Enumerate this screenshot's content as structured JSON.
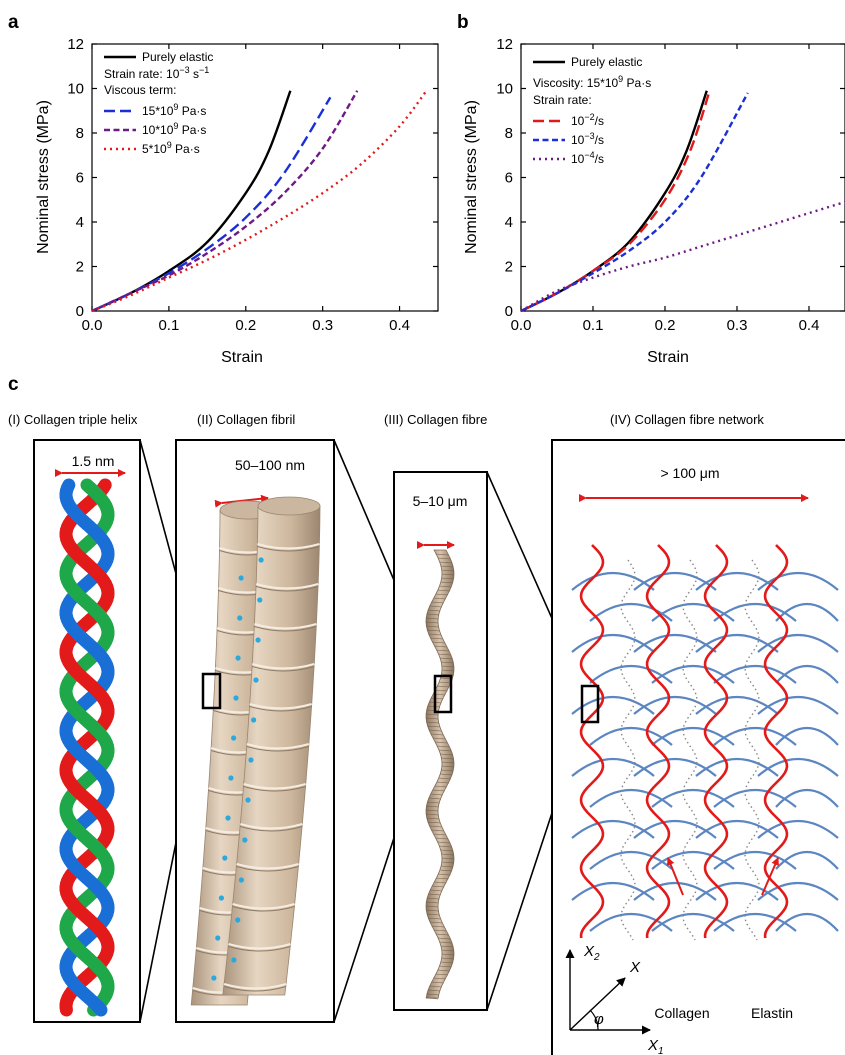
{
  "panel_labels": [
    "a",
    "b",
    "c"
  ],
  "chart_data": [
    {
      "type": "line",
      "panel": "a",
      "xlabel": "Strain",
      "ylabel": "Nominal stress (MPa)",
      "xlim": [
        0,
        0.45
      ],
      "ylim": [
        0,
        12
      ],
      "xticks": [
        "0.0",
        "0.1",
        "0.2",
        "0.3",
        "0.4"
      ],
      "yticks": [
        "0",
        "2",
        "4",
        "6",
        "8",
        "10",
        "12"
      ],
      "legend_position": "top-left",
      "legend_text": {
        "strain_rate": "Strain rate: 10",
        "strain_rate_exp": "−3",
        "strain_rate_unit": " s",
        "strain_rate_unit_exp": "−1",
        "heading": "Viscous term:"
      },
      "series": [
        {
          "name": "Purely elastic",
          "label_base": "Purely elastic",
          "label_exp": "",
          "label_unit": "",
          "color": "#000000",
          "dash": "solid",
          "x": [
            0,
            0.05,
            0.1,
            0.15,
            0.2,
            0.23,
            0.258
          ],
          "y": [
            0,
            0.8,
            1.8,
            3.1,
            5.3,
            7.2,
            9.9
          ]
        },
        {
          "name": "15*10^9 Pa·s",
          "label_base": "15*10",
          "label_exp": "9",
          "label_unit": " Pa·s",
          "color": "#1a2fd6",
          "dash": "long",
          "x": [
            0,
            0.05,
            0.1,
            0.15,
            0.2,
            0.25,
            0.31
          ],
          "y": [
            0,
            0.8,
            1.7,
            2.8,
            4.2,
            6.2,
            9.6
          ]
        },
        {
          "name": "10*10^9 Pa·s",
          "label_base": "10*10",
          "label_exp": "9",
          "label_unit": " Pa·s",
          "color": "#6e1a86",
          "dash": "medium",
          "x": [
            0,
            0.05,
            0.1,
            0.15,
            0.2,
            0.25,
            0.3,
            0.345
          ],
          "y": [
            0,
            0.8,
            1.6,
            2.6,
            3.8,
            5.3,
            7.3,
            9.9
          ]
        },
        {
          "name": "5*10^9 Pa·s",
          "label_base": "5*10",
          "label_exp": "9",
          "label_unit": " Pa·s",
          "color": "#e01a1a",
          "dash": "dot",
          "x": [
            0,
            0.05,
            0.1,
            0.15,
            0.2,
            0.25,
            0.3,
            0.35,
            0.4,
            0.435
          ],
          "y": [
            0,
            0.7,
            1.5,
            2.3,
            3.2,
            4.2,
            5.3,
            6.6,
            8.3,
            9.9
          ]
        }
      ]
    },
    {
      "type": "line",
      "panel": "b",
      "xlabel": "Strain",
      "ylabel": "Nominal stress (MPa)",
      "xlim": [
        0,
        0.45
      ],
      "ylim": [
        0,
        12
      ],
      "xticks": [
        "0.0",
        "0.1",
        "0.2",
        "0.3",
        "0.4"
      ],
      "yticks": [
        "0",
        "2",
        "4",
        "6",
        "8",
        "10",
        "12"
      ],
      "legend_position": "top-left",
      "legend_text": {
        "viscosity": "Viscosity: 15*10",
        "viscosity_exp": "9",
        "viscosity_unit": " Pa·s",
        "heading": "Strain rate:"
      },
      "series": [
        {
          "name": "Purely elastic",
          "label_base": "Purely elastic",
          "label_exp": "",
          "label_unit": "",
          "color": "#000000",
          "dash": "solid",
          "x": [
            0,
            0.05,
            0.1,
            0.15,
            0.2,
            0.23,
            0.258
          ],
          "y": [
            0,
            0.8,
            1.8,
            3.1,
            5.3,
            7.2,
            9.9
          ]
        },
        {
          "name": "10^-2/s",
          "label_base": "10",
          "label_exp": "−2",
          "label_unit": "/s",
          "color": "#e01a1a",
          "dash": "long",
          "x": [
            0,
            0.05,
            0.1,
            0.15,
            0.2,
            0.235,
            0.262
          ],
          "y": [
            0,
            0.8,
            1.8,
            3.0,
            5.0,
            7.2,
            9.9
          ]
        },
        {
          "name": "10^-3/s",
          "label_base": "10",
          "label_exp": "−3",
          "label_unit": "/s",
          "color": "#1a2fd6",
          "dash": "medium",
          "x": [
            0,
            0.05,
            0.1,
            0.15,
            0.2,
            0.25,
            0.315
          ],
          "y": [
            0,
            0.8,
            1.7,
            2.7,
            4.0,
            6.0,
            9.8
          ]
        },
        {
          "name": "10^-4/s",
          "label_base": "10",
          "label_exp": "−4",
          "label_unit": "/s",
          "color": "#6e1a86",
          "dash": "dot",
          "x": [
            0,
            0.05,
            0.1,
            0.15,
            0.2,
            0.25,
            0.3,
            0.35,
            0.4,
            0.45
          ],
          "y": [
            0,
            0.9,
            1.5,
            2.0,
            2.4,
            2.9,
            3.4,
            3.9,
            4.4,
            4.9
          ]
        }
      ]
    }
  ],
  "schematic": {
    "stages": [
      {
        "title": "(I) Collagen triple helix",
        "dimension": "1.5 nm"
      },
      {
        "title": "(II) Collagen fibril",
        "dimension": "50–100 nm"
      },
      {
        "title": "(III) Collagen fibre",
        "dimension": "5–10 μm"
      },
      {
        "title": "(IV) Collagen fibre network",
        "dimension": "> 100 μm"
      }
    ],
    "helix_colors": [
      "#1fa84a",
      "#e31a1a",
      "#1a6fd6"
    ],
    "fibril_color": "#d9c6ad",
    "crosslink_color": "#29a9e0",
    "network_labels": {
      "collagen": "Collagen",
      "elastin": "Elastin"
    },
    "network_colors": {
      "collagen": "#e31a1a",
      "elastin": "#5b86c2",
      "matrix": "#888888"
    },
    "axes": {
      "x2": "X",
      "x2_sub": "2",
      "x": "X",
      "x1": "X",
      "x1_sub": "1",
      "angle": "φ"
    }
  }
}
